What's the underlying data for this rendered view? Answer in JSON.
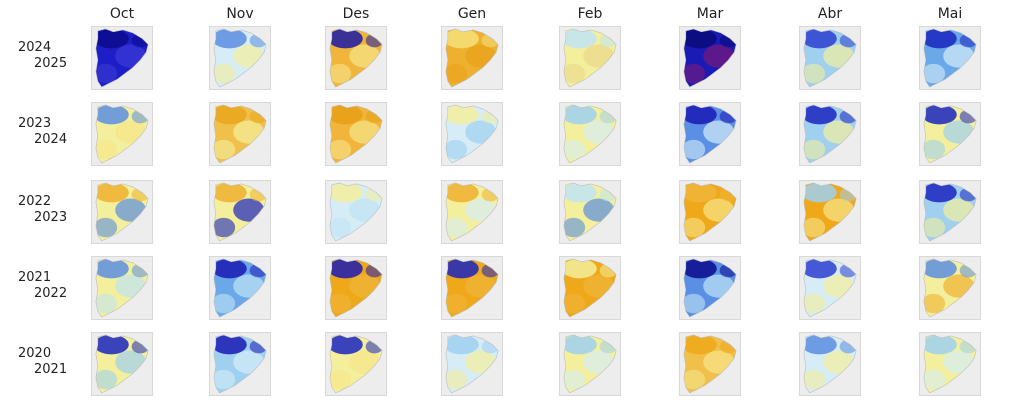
{
  "months": [
    "Oct",
    "Nov",
    "Des",
    "Gen",
    "Feb",
    "Mar",
    "Abr",
    "Mai"
  ],
  "rows": [
    {
      "years": [
        "2024",
        "2025"
      ],
      "cells": [
        {
          "base": "#1e1ec8",
          "accent": "#0a0a8c",
          "warm": "#3b3bd6"
        },
        {
          "base": "#d6ecf6",
          "accent": "#5a8ee0",
          "warm": "#f3ef9c"
        },
        {
          "base": "#f0b53a",
          "accent": "#1a1aa8",
          "warm": "#f6e58a"
        },
        {
          "base": "#efb030",
          "accent": "#f4e07a",
          "warm": "#eaa21a"
        },
        {
          "base": "#f3ef9c",
          "accent": "#bfe4f4",
          "warm": "#e9d88a"
        },
        {
          "base": "#1a1ab4",
          "accent": "#0a0a7a",
          "warm": "#7a1a7a"
        },
        {
          "base": "#9fd0f0",
          "accent": "#2b3ed0",
          "warm": "#f3ef9c"
        },
        {
          "base": "#6aa8ea",
          "accent": "#1a24c0",
          "warm": "#d6ecf6"
        }
      ]
    },
    {
      "years": [
        "2023",
        "2024"
      ],
      "cells": [
        {
          "base": "#f3ef9c",
          "accent": "#5a8ee0",
          "warm": "#f6e58a"
        },
        {
          "base": "#f0c04a",
          "accent": "#e9a61c",
          "warm": "#f3ef9c"
        },
        {
          "base": "#f0b53a",
          "accent": "#e8a016",
          "warm": "#f6e58a"
        },
        {
          "base": "#d6ecf6",
          "accent": "#f3ef9c",
          "warm": "#9fd0f0"
        },
        {
          "base": "#f3ef9c",
          "accent": "#9fd0f0",
          "warm": "#d6ecf6"
        },
        {
          "base": "#5b8fe6",
          "accent": "#1a1ab4",
          "warm": "#d6ecf6"
        },
        {
          "base": "#9fd0f0",
          "accent": "#1a24c0",
          "warm": "#f3ef9c"
        },
        {
          "base": "#f3ef9c",
          "accent": "#1a24c0",
          "warm": "#9fd0f0"
        }
      ]
    },
    {
      "years": [
        "2022",
        "2023"
      ],
      "cells": [
        {
          "base": "#f3ef9c",
          "accent": "#efb030",
          "warm": "#5a8ee0"
        },
        {
          "base": "#f3ef9c",
          "accent": "#efb030",
          "warm": "#1a24c0"
        },
        {
          "base": "#d6ecf6",
          "accent": "#f3ef9c",
          "warm": "#bfe4f4"
        },
        {
          "base": "#f3ef9c",
          "accent": "#efb030",
          "warm": "#d6ecf6"
        },
        {
          "base": "#f3ef9c",
          "accent": "#bfe4f4",
          "warm": "#5a8ee0"
        },
        {
          "base": "#efa81a",
          "accent": "#f0b53a",
          "warm": "#f6e58a"
        },
        {
          "base": "#efa81a",
          "accent": "#9fd0f0",
          "warm": "#f6e58a"
        },
        {
          "base": "#9fd0f0",
          "accent": "#1a24c0",
          "warm": "#f3ef9c"
        }
      ]
    },
    {
      "years": [
        "2021",
        "2022"
      ],
      "cells": [
        {
          "base": "#f3ef9c",
          "accent": "#5a8ee0",
          "warm": "#bfe4f4"
        },
        {
          "base": "#6aa8ea",
          "accent": "#1a1ab4",
          "warm": "#bfe4f4"
        },
        {
          "base": "#efa81a",
          "accent": "#1a1ab4",
          "warm": "#f0b53a"
        },
        {
          "base": "#efa81a",
          "accent": "#1a24c0",
          "warm": "#f0b53a"
        },
        {
          "base": "#efa81a",
          "accent": "#f3ef9c",
          "warm": "#f0b53a"
        },
        {
          "base": "#5b8fe6",
          "accent": "#0a0a8c",
          "warm": "#bfe4f4"
        },
        {
          "base": "#d6ecf6",
          "accent": "#2b3ed0",
          "warm": "#f3ef9c"
        },
        {
          "base": "#f3ef9c",
          "accent": "#5a8ee0",
          "warm": "#efb030"
        }
      ]
    },
    {
      "years": [
        "2020",
        "2021"
      ],
      "cells": [
        {
          "base": "#f3ef9c",
          "accent": "#1a24c0",
          "warm": "#9fd0f0"
        },
        {
          "base": "#9fd0f0",
          "accent": "#1a1ab4",
          "warm": "#d6ecf6"
        },
        {
          "base": "#f3ef9c",
          "accent": "#1a24c0",
          "warm": "#f6e58a"
        },
        {
          "base": "#d6ecf6",
          "accent": "#9fd0f0",
          "warm": "#f3ef9c"
        },
        {
          "base": "#f3ef9c",
          "accent": "#9fd0f0",
          "warm": "#d6ecf6"
        },
        {
          "base": "#f0c04a",
          "accent": "#efa81a",
          "warm": "#f6e58a"
        },
        {
          "base": "#d6ecf6",
          "accent": "#5a8ee0",
          "warm": "#f3ef9c"
        },
        {
          "base": "#f3ef9c",
          "accent": "#9fd0f0",
          "warm": "#d6ecf6"
        }
      ]
    }
  ]
}
